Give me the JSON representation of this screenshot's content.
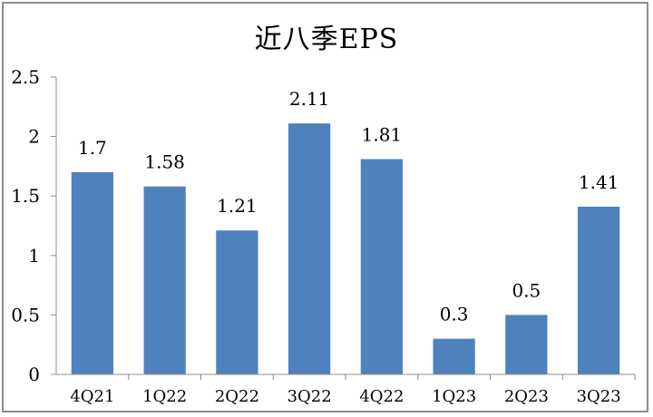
{
  "chart_data": {
    "type": "bar",
    "title": "近八季EPS",
    "xlabel": "",
    "ylabel": "",
    "categories": [
      "4Q21",
      "1Q22",
      "2Q22",
      "3Q22",
      "4Q22",
      "1Q23",
      "2Q23",
      "3Q23"
    ],
    "values": [
      1.7,
      1.58,
      1.21,
      2.11,
      1.81,
      0.3,
      0.5,
      1.41
    ],
    "data_labels": [
      "1.7",
      "1.58",
      "1.21",
      "2.11",
      "1.81",
      "0.3",
      "0.5",
      "1.41"
    ],
    "ylim": [
      0,
      2.5
    ],
    "yticks": [
      0,
      0.5,
      1,
      1.5,
      2,
      2.5
    ],
    "ytick_labels": [
      "0",
      "0.5",
      "1",
      "1.5",
      "2",
      "2.5"
    ],
    "grid": false,
    "legend": "none",
    "bar_color": "#4f81bd"
  }
}
